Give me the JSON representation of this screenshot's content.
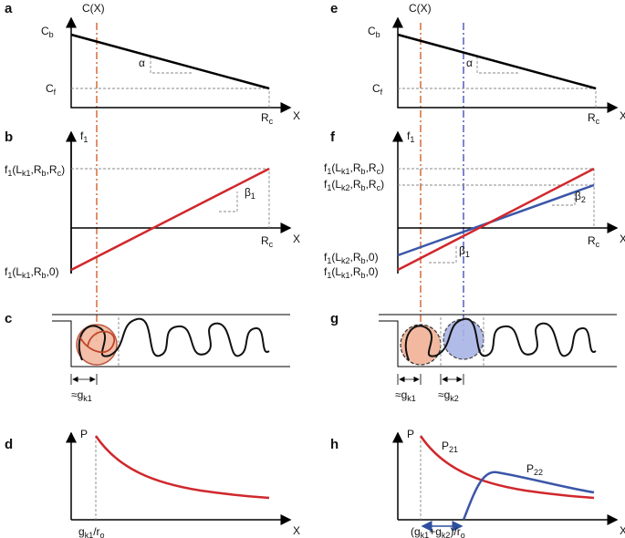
{
  "panels": [
    {
      "letter": "a",
      "labels": [
        [
          "C(X)"
        ],
        [
          "C",
          "b"
        ],
        [
          "C",
          "f"
        ],
        [
          "α"
        ],
        [
          "R",
          "c"
        ],
        [
          "X"
        ]
      ]
    },
    {
      "letter": "b",
      "labels": [
        [
          "f",
          "1"
        ],
        [
          "f",
          "1",
          "(L",
          "k1",
          ",R",
          "b",
          ",R",
          "c",
          ")"
        ],
        [
          "β",
          "1"
        ],
        [
          "R",
          "c"
        ],
        [
          "X"
        ],
        [
          "f",
          "1",
          "(L",
          "k1",
          ",R",
          "b",
          ",0)"
        ]
      ]
    },
    {
      "letter": "c",
      "labels": [
        [
          "≈g",
          "k1"
        ]
      ]
    },
    {
      "letter": "d",
      "labels": [
        [
          "P"
        ],
        [
          "g",
          "k1",
          "/r",
          "o"
        ],
        [
          "X"
        ]
      ]
    },
    {
      "letter": "e",
      "labels": [
        [
          "C(X)"
        ],
        [
          "C",
          "b"
        ],
        [
          "C",
          "f"
        ],
        [
          "α"
        ],
        [
          "R",
          "c"
        ],
        [
          "X"
        ]
      ]
    },
    {
      "letter": "f",
      "labels": [
        [
          "f",
          "1"
        ],
        [
          "f",
          "1",
          "(L",
          "k1",
          ",R",
          "b",
          ",R",
          "c",
          ")"
        ],
        [
          "f",
          "1",
          "(L",
          "k2",
          ",R",
          "b",
          ",R",
          "c",
          ")"
        ],
        [
          "β",
          "2"
        ],
        [
          "R",
          "c"
        ],
        [
          "X"
        ],
        [
          "f",
          "1",
          "(L",
          "k2",
          ",R",
          "b",
          ",0)"
        ],
        [
          "β",
          "1"
        ],
        [
          "f",
          "1",
          "(L",
          "k1",
          ",R",
          "b",
          ",0)"
        ]
      ]
    },
    {
      "letter": "g",
      "labels": [
        [
          "≈g",
          "k1"
        ],
        [
          "≈g",
          "k2"
        ]
      ]
    },
    {
      "letter": "h",
      "labels": [
        [
          "P"
        ],
        [
          "P",
          "21"
        ],
        [
          "P",
          "22"
        ],
        [
          "(g",
          "k1",
          "+g",
          "k2",
          ")/r",
          "o"
        ],
        [
          "X"
        ]
      ]
    }
  ]
}
